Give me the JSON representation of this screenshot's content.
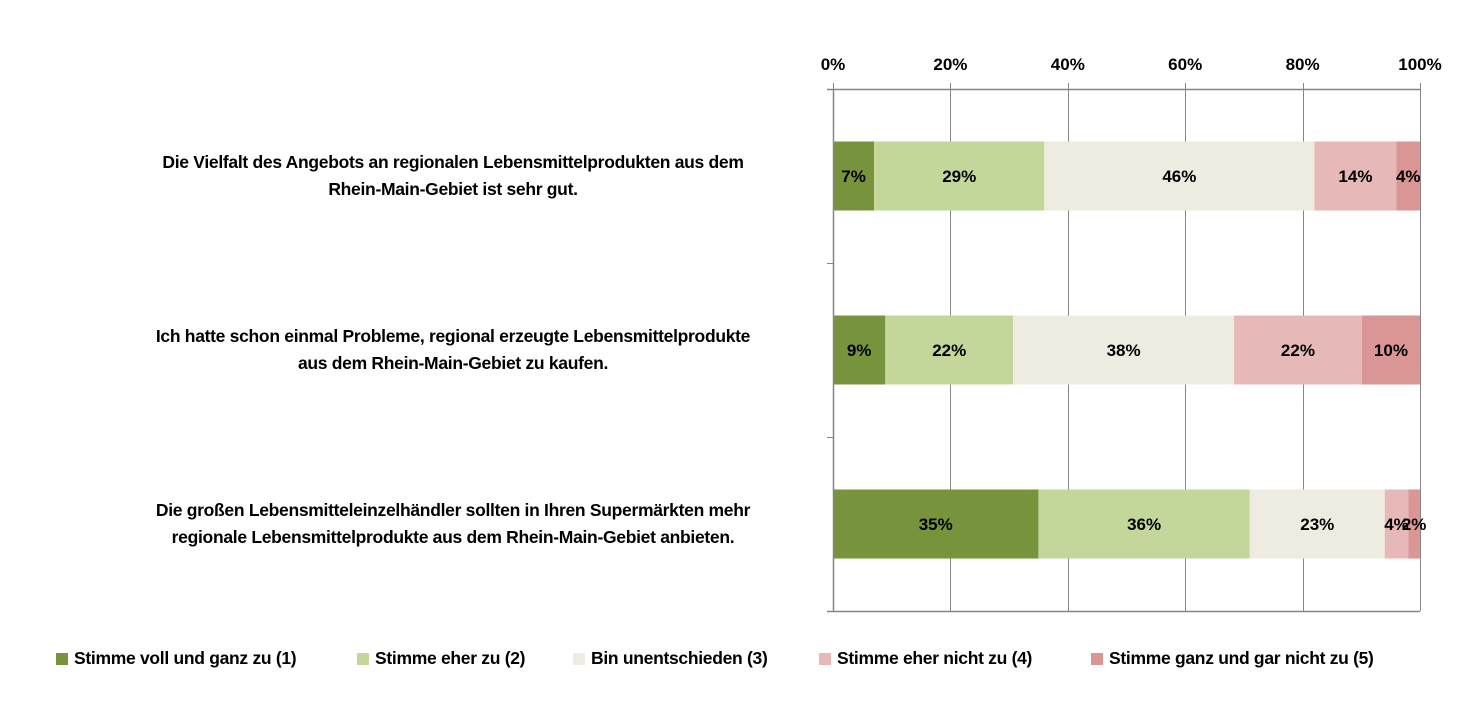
{
  "chart_data": {
    "type": "bar",
    "orientation": "horizontal",
    "stacked": "percent",
    "title": "",
    "xlabel": "",
    "ylabel": "",
    "xlim": [
      0,
      100
    ],
    "x_ticks": [
      "0%",
      "20%",
      "40%",
      "60%",
      "80%",
      "100%"
    ],
    "x_tick_values": [
      0,
      20,
      40,
      60,
      80,
      100
    ],
    "x_axis_position": "top",
    "grid": true,
    "legend_position": "bottom",
    "categories": [
      [
        "Die Vielfalt des Angebots an regionalen Lebensmittelprodukten aus dem",
        "Rhein-Main-Gebiet ist sehr gut."
      ],
      [
        "Ich hatte schon einmal Probleme, regional erzeugte Lebensmittelprodukte",
        "aus dem Rhein-Main-Gebiet zu kaufen."
      ],
      [
        "Die großen Lebensmitteleinzelhändler sollten in Ihren Supermärkten mehr",
        "regionale Lebensmittelprodukte aus dem Rhein-Main-Gebiet anbieten."
      ]
    ],
    "series": [
      {
        "name": "Stimme voll und ganz zu (1)",
        "color": "#77933c",
        "values": [
          7,
          9,
          35
        ],
        "labels": [
          "7%",
          "9%",
          "35%"
        ]
      },
      {
        "name": "Stimme eher zu (2)",
        "color": "#c4d79b",
        "values": [
          29,
          22,
          36
        ],
        "labels": [
          "29%",
          "22%",
          "36%"
        ]
      },
      {
        "name": "Bin unentschieden (3)",
        "color": "#eeece1",
        "values": [
          46,
          38,
          23
        ],
        "labels": [
          "46%",
          "38%",
          "23%"
        ]
      },
      {
        "name": "Stimme eher nicht zu (4)",
        "color": "#e6b9b8",
        "values": [
          14,
          22,
          4
        ],
        "labels": [
          "14%",
          "22%",
          "4%"
        ]
      },
      {
        "name": "Stimme ganz und gar nicht zu (5)",
        "color": "#d99694",
        "values": [
          4,
          10,
          2
        ],
        "labels": [
          "4%",
          "10%",
          "2%"
        ]
      }
    ]
  },
  "colors": {
    "axis": "#868686",
    "text": "#000000"
  }
}
